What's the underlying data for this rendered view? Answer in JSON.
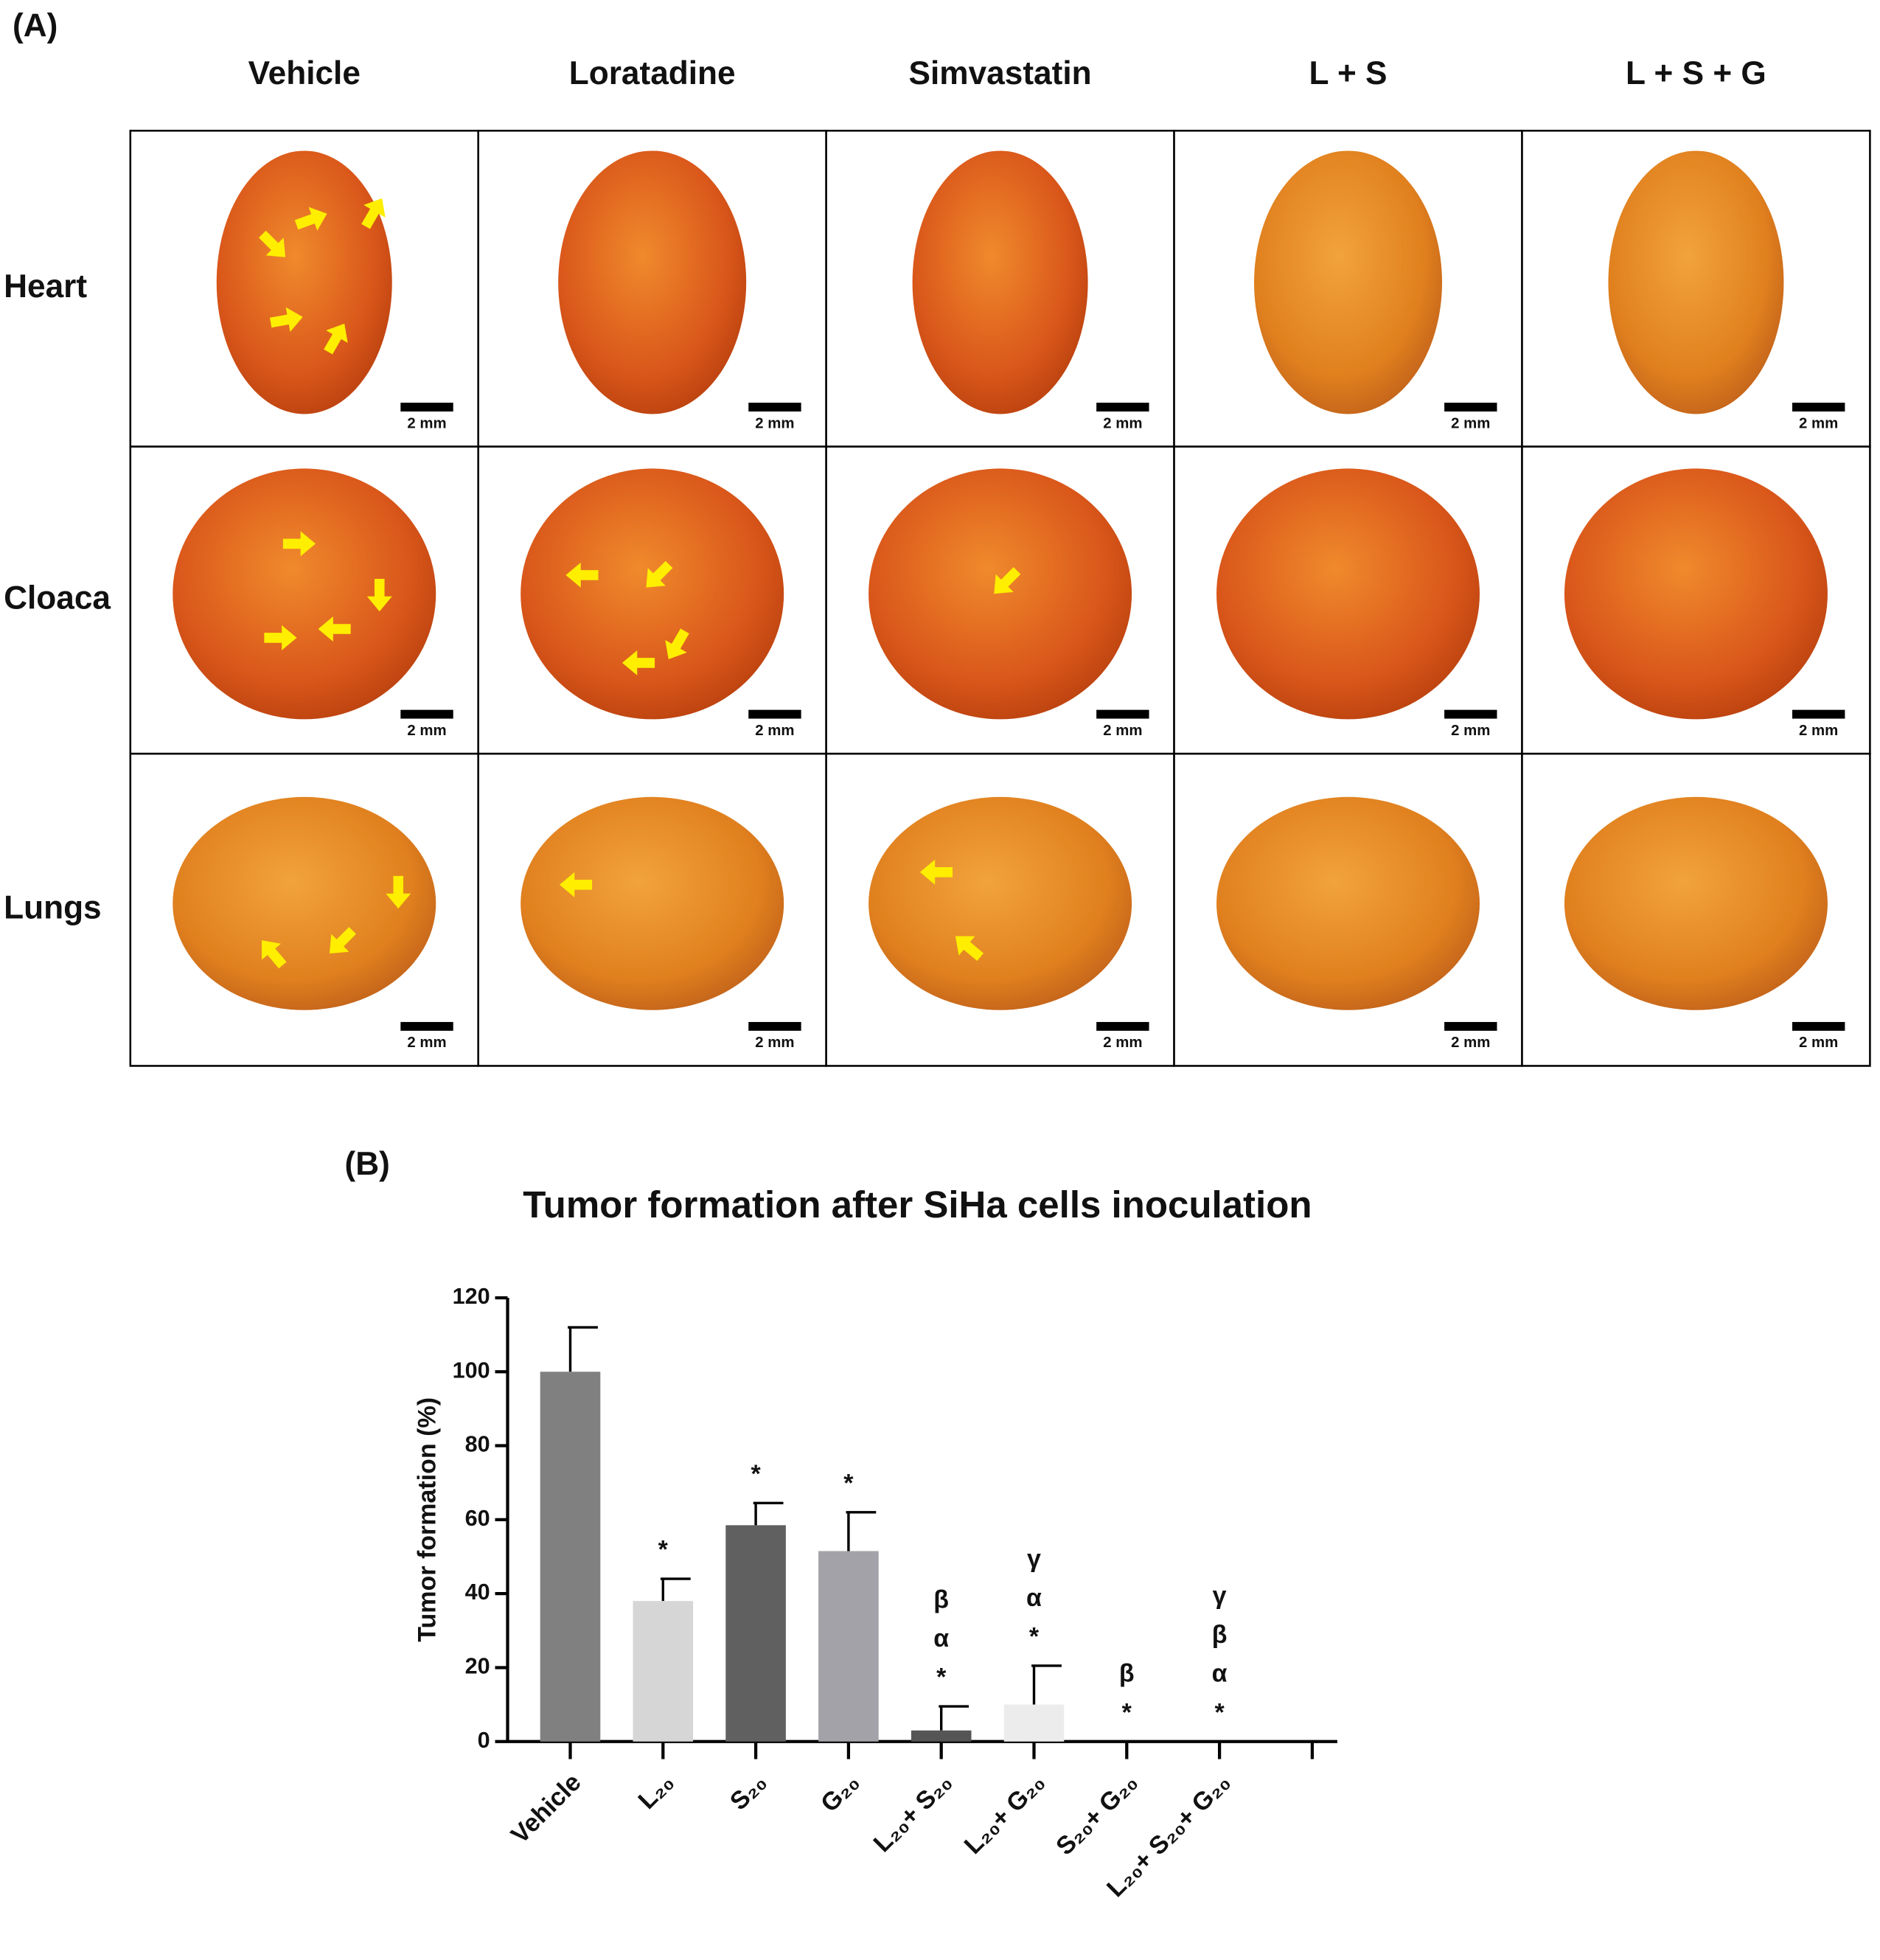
{
  "panel_a": {
    "label": "(A)",
    "columns": [
      "Vehicle",
      "Loratadine",
      "Simvastatin",
      "L + S",
      "L + S + G"
    ],
    "rows": [
      "Heart",
      "Cloaca",
      "Lungs"
    ],
    "scale_bar": "2 mm"
  },
  "chart_data": {
    "type": "bar",
    "label": "(B)",
    "title": "Tumor formation after SiHa cells inoculation",
    "y_label": "Tumor formation (%)",
    "categories": [
      "Vehicle",
      "L₂₀",
      "S₂₀",
      "G₂₀",
      "L₂₀+ S₂₀",
      "L₂₀+ G₂₀",
      "S₂₀+ G₂₀",
      "L₂₀+ S₂₀+ G₂₀"
    ],
    "values": [
      100,
      38,
      58.5,
      51.5,
      3,
      10,
      0,
      0
    ],
    "errors": [
      12,
      6,
      6,
      10.5,
      6.5,
      10.5,
      0,
      0
    ],
    "colors": [
      "#808080",
      "#d6d6d6",
      "#606060",
      "#a2a2a8",
      "#555555",
      "#ececec",
      "#555555",
      "#555555"
    ],
    "annotations": [
      [],
      [
        "*"
      ],
      [
        "*"
      ],
      [
        "*"
      ],
      [
        "β",
        "α",
        "*"
      ],
      [
        "γ",
        "α",
        "*"
      ],
      [
        "β",
        "*"
      ],
      [
        "γ",
        "β",
        "α",
        "*"
      ]
    ],
    "ylim": [
      0,
      120
    ],
    "yticks": [
      0,
      20,
      40,
      60,
      80,
      100,
      120
    ]
  }
}
